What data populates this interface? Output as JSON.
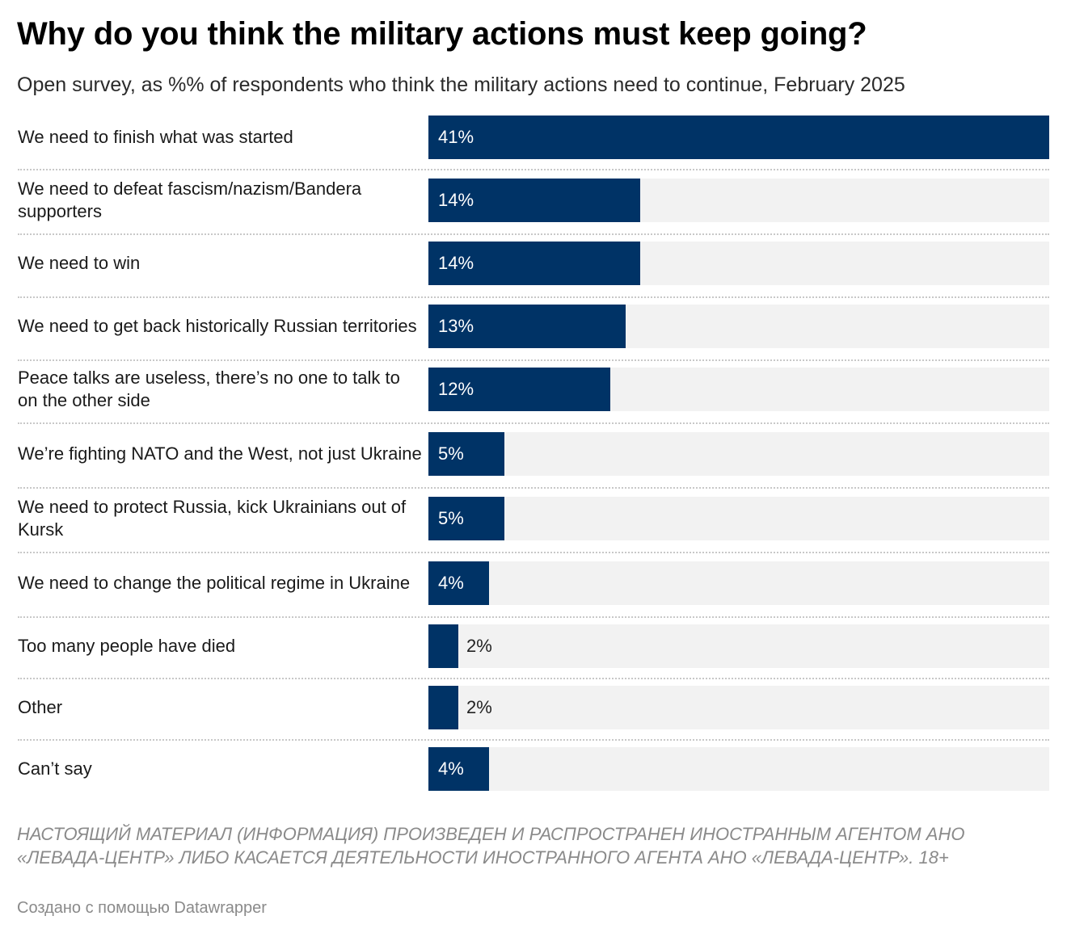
{
  "header": {
    "title": "Why do you think the military actions must keep going?",
    "subtitle": "Open survey, as %% of respondents who think the military actions need to continue, February 2025"
  },
  "colors": {
    "bar": "#003366",
    "track": "#f2f2f2",
    "label_inside": "#ffffff",
    "label_outside": "#222222"
  },
  "chart_data": {
    "type": "bar",
    "orientation": "horizontal",
    "title": "Why do you think the military actions must keep going?",
    "subtitle": "Open survey, as %% of respondents who think the military actions need to continue, February 2025",
    "xlabel": "",
    "ylabel": "",
    "xlim": [
      0,
      41
    ],
    "grid": false,
    "categories": [
      "We need to finish what was started",
      "We need to defeat fascism/nazism/Bandera supporters",
      "We need to win",
      "We need to get back historically Russian territories",
      "Peace talks are useless, there’s no one to talk to on the other side",
      "We’re fighting NATO and the West, not just Ukraine",
      "We need to protect Russia, kick Ukrainians out of Kursk",
      "We need to change the political regime in Ukraine",
      "Too many people have died",
      "Other",
      "Can’t say"
    ],
    "values": [
      41,
      14,
      14,
      13,
      12,
      5,
      5,
      4,
      2,
      2,
      4
    ],
    "value_labels": [
      "41%",
      "14%",
      "14%",
      "13%",
      "12%",
      "5%",
      "5%",
      "4%",
      "2%",
      "2%",
      "4%"
    ]
  },
  "notes": "НАСТОЯЩИЙ МАТЕРИАЛ (ИНФОРМАЦИЯ) ПРОИЗВЕДЕН И РАСПРОСТРАНЕН ИНОСТРАННЫМ АГЕНТОМ АНО «ЛЕВАДА-ЦЕНТР» ЛИБО КАСАЕТСЯ ДЕЯТЕЛЬНОСТИ ИНОСТРАННОГО АГЕНТА АНО «ЛЕВАДА-ЦЕНТР». 18+",
  "credit": "Создано с помощью Datawrapper"
}
